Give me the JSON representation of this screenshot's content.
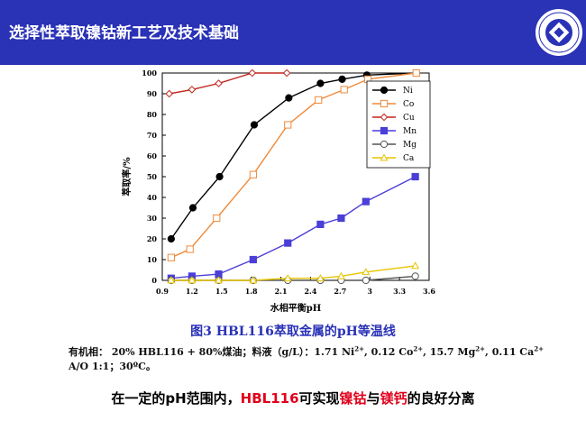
{
  "header": {
    "title": "选择性萃取镍钴新工艺及技术基础",
    "background": "#2a32b6",
    "text_color": "#ffffff"
  },
  "logo": {
    "name": "university-seal-icon"
  },
  "caption": {
    "prefix": "图3 ",
    "code": "HBL116",
    "text": "萃取金属的pH等温线",
    "color": "#2a32b6"
  },
  "conditions": {
    "line1_pre": "有机相： 20% HBL116 + 80%煤油；料液（g/L）：1.71 Ni",
    "ni_sup": "2+",
    "line1_co": ", 0.12 Co",
    "co_sup": "2+",
    "line1_mg": ", 15.7 Mg",
    "mg_sup": "2+",
    "line1_ca": ", 0.11 Ca",
    "ca_sup": "2+",
    "line2": "A/O 1:1；30ºC。"
  },
  "conclusion": {
    "part1": "在一定的pH范围内，",
    "part2": "HBL116",
    "part3": "可实现",
    "part4": "镍钴",
    "part5": "与",
    "part6": "镁钙",
    "part7": "的良好分离",
    "accent": "#e0001b"
  },
  "chart_data": {
    "type": "line",
    "title": "",
    "xlabel": "水相平衡pH",
    "ylabel": "萃取率/%",
    "xlim": [
      0.9,
      3.6
    ],
    "ylim": [
      0,
      100
    ],
    "xticks": [
      "0.9",
      "1.2",
      "1.5",
      "1.8",
      "2.1",
      "2.4",
      "2.7",
      "3",
      "3.3",
      "3.6"
    ],
    "yticks": [
      "0",
      "10",
      "20",
      "30",
      "40",
      "50",
      "60",
      "70",
      "80",
      "90",
      "100"
    ],
    "grid": false,
    "legend_position": "top-right",
    "series": [
      {
        "name": "Ni",
        "color": "#000000",
        "marker": "circle-filled",
        "x": [
          0.99,
          1.21,
          1.48,
          1.83,
          2.18,
          2.5,
          2.72,
          2.97,
          3.47
        ],
        "y": [
          20,
          35,
          50,
          75,
          88,
          95,
          97,
          99,
          100
        ]
      },
      {
        "name": "Co",
        "color": "#ef8a3a",
        "marker": "square-open",
        "x": [
          0.99,
          1.18,
          1.45,
          1.82,
          2.17,
          2.48,
          2.74,
          2.98,
          3.47
        ],
        "y": [
          11,
          15,
          30,
          51,
          75,
          87,
          92,
          97,
          100
        ]
      },
      {
        "name": "Cu",
        "color": "#c0261c",
        "marker": "diamond-open",
        "x": [
          0.97,
          1.2,
          1.47,
          1.81,
          2.16
        ],
        "y": [
          90,
          92,
          95,
          100,
          100
        ]
      },
      {
        "name": "Mn",
        "color": "#4b3fd8",
        "marker": "square-filled",
        "x": [
          0.99,
          1.2,
          1.47,
          1.82,
          2.17,
          2.5,
          2.71,
          2.96,
          3.46
        ],
        "y": [
          1,
          2,
          3,
          10,
          18,
          27,
          30,
          38,
          50
        ]
      },
      {
        "name": "Mg",
        "color": "#555555",
        "marker": "circle-open",
        "x": [
          0.99,
          1.2,
          1.47,
          1.82,
          2.17,
          2.5,
          2.71,
          2.96,
          3.46
        ],
        "y": [
          0,
          0,
          0,
          0,
          0,
          0,
          0,
          0,
          2
        ]
      },
      {
        "name": "Ca",
        "color": "#e8c400",
        "marker": "triangle-open",
        "x": [
          0.99,
          1.2,
          1.47,
          1.82,
          2.17,
          2.5,
          2.71,
          2.96,
          3.46
        ],
        "y": [
          0,
          0,
          0,
          0,
          1,
          1,
          2,
          4,
          7
        ]
      }
    ]
  }
}
